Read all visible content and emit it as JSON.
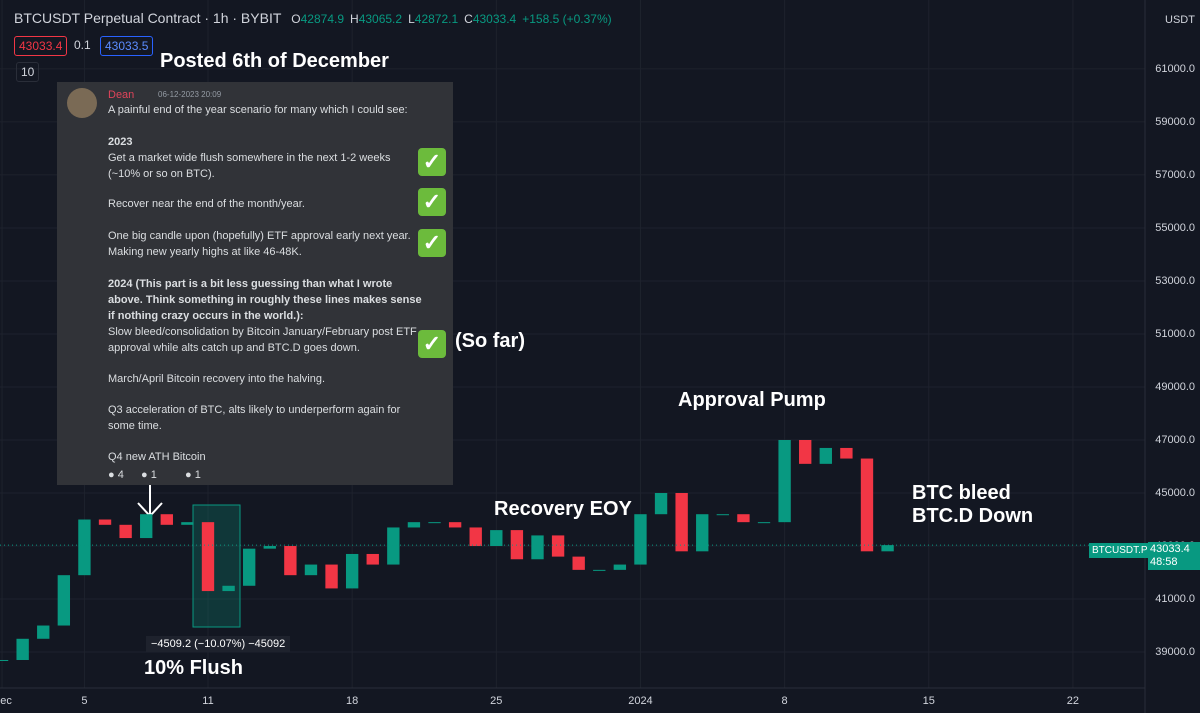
{
  "header": {
    "title": "BTCUSDT Perpetual Contract · 1h · BYBIT",
    "ohlc": [
      {
        "label": "O",
        "value": "42874.9"
      },
      {
        "label": "H",
        "value": "43065.2"
      },
      {
        "label": "L",
        "value": "42872.1"
      },
      {
        "label": "C",
        "value": "43033.4"
      }
    ],
    "change": "+158.5 (+0.37%)",
    "bid": "43033.4",
    "spread": "0.1",
    "ask": "43033.5",
    "interval": "10",
    "currency": "USDT"
  },
  "annotations": {
    "posted": "Posted 6th of December",
    "flush": "10% Flush",
    "recovery": "Recovery EOY",
    "pump": "Approval Pump",
    "bleed": "BTC bleed",
    "btcd": "BTC.D Down",
    "so_far": "(So far)",
    "measure": "−4509.2 (−10.07%) −45092"
  },
  "message": {
    "author": "Dean",
    "time": "06-12-2023 20:09",
    "lines": [
      "A painful end of the year scenario for many which I could see:",
      "2023",
      "Get a market wide flush somewhere in the next 1-2 weeks (~10% or so on BTC).",
      "Recover near the end of the month/year.",
      "One big candle upon (hopefully) ETF approval early next year. Making new yearly highs at like 46-48K.",
      "2024 (This part is a bit less guessing than what I wrote above. Think something in roughly these lines makes sense if nothing crazy occurs in the world.):",
      "Slow bleed/consolidation by Bitcoin January/February post ETF approval while alts catch up and BTC.D goes down.",
      "March/April Bitcoin recovery into the halving.",
      "Q3 acceleration of BTC, alts likely to underperform again for some time.",
      "Q4 new ATH Bitcoin"
    ],
    "reactions": [
      "4",
      "1",
      "1"
    ]
  },
  "price_label": {
    "symbol": "BTCUSDT.P",
    "price": "43033.4",
    "countdown": "48:58"
  },
  "chart_data": {
    "type": "candlestick",
    "series": [
      {
        "name": "BTCUSDT.P",
        "up_color": "#089981",
        "down_color": "#f23645",
        "values": [
          38700,
          39500,
          40000,
          41900,
          44000,
          43800,
          43300,
          44200,
          43800,
          43900,
          41300,
          41500,
          42900,
          43000,
          41900,
          42300,
          41400,
          42700,
          42300,
          43700,
          43900,
          43900,
          43700,
          43000,
          43600,
          42500,
          43400,
          42600,
          42100,
          42100,
          42300,
          44200,
          45000,
          42800,
          44200,
          44200,
          43900,
          43900,
          47000,
          46100,
          46700,
          46300,
          42800,
          43033.4
        ]
      }
    ],
    "xlim": [
      -0.1,
      55.5
    ],
    "xticks": [
      {
        "value": 0,
        "label": "Dec"
      },
      {
        "value": 4,
        "label": "5"
      },
      {
        "value": 10,
        "label": "11"
      },
      {
        "value": 17,
        "label": "18"
      },
      {
        "value": 24,
        "label": "25"
      },
      {
        "value": 31,
        "label": "2024"
      },
      {
        "value": 38,
        "label": "8"
      },
      {
        "value": 45,
        "label": "15"
      },
      {
        "value": 52,
        "label": "22"
      }
    ],
    "ylim": [
      36700,
      63600
    ],
    "yticks": [
      {
        "value": 39000,
        "label": "39000.0"
      },
      {
        "value": 41000,
        "label": "41000.0"
      },
      {
        "value": 43000,
        "label": "43000.0"
      },
      {
        "value": 45000,
        "label": "45000.0"
      },
      {
        "value": 47000,
        "label": "47000.0"
      },
      {
        "value": 49000,
        "label": "49000.0"
      },
      {
        "value": 51000,
        "label": "51000.0"
      },
      {
        "value": 53000,
        "label": "53000.0"
      },
      {
        "value": 55000,
        "label": "55000.0"
      },
      {
        "value": 57000,
        "label": "57000.0"
      },
      {
        "value": 59000,
        "label": "59000.0"
      },
      {
        "value": 61000,
        "label": "61000.0"
      }
    ]
  }
}
